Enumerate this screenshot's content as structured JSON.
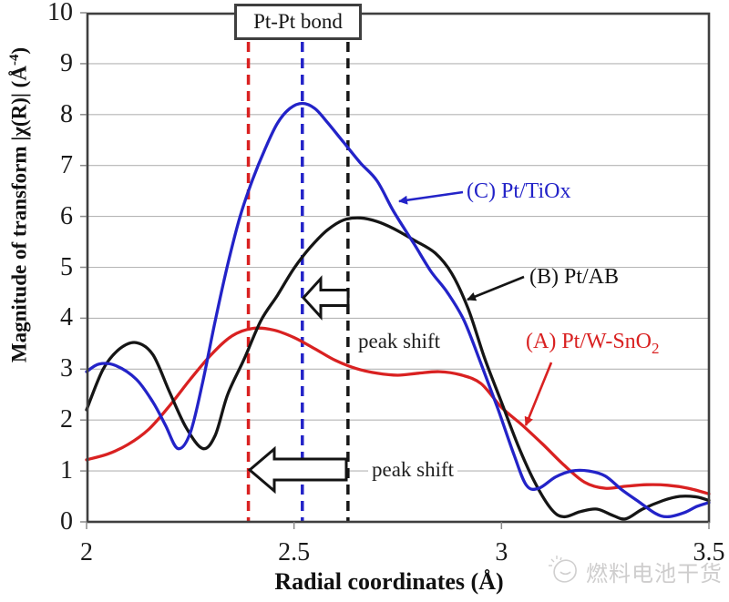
{
  "page": {
    "background": "#ffffff"
  },
  "watermark": {
    "text": "燃料电池干货",
    "icon": "sketch-doodle-icon",
    "color": "#c6c5c5"
  },
  "chart_data": {
    "type": "line",
    "title": "",
    "xlabel": "Radial coordinates (Å)",
    "ylabel": "Magnitude of transform |χ(R)| (Å⁻⁴)",
    "ylabel_parts": {
      "main": "Magnitude of transform |χ(R)| (Å",
      "sup": "-4",
      "close": ")"
    },
    "xlim": [
      2,
      3.5
    ],
    "ylim": [
      0,
      10
    ],
    "x_tick_values": [
      2,
      2.5,
      3,
      3.5
    ],
    "y_tick_values": [
      0,
      1,
      2,
      3,
      4,
      5,
      6,
      7,
      8,
      9,
      10
    ],
    "grid": "horizontal",
    "legend_position": "inline-annotations",
    "axis_color": "#3f3f3f",
    "grid_color": "#b5b5b5",
    "tick_color": "#8a8a8a",
    "series": [
      {
        "key": "A",
        "name": "(A) Pt/W-SnO2",
        "label_main": "(A) Pt/W-SnO",
        "label_sub": "2",
        "color": "#d92121",
        "points": [
          [
            2.0,
            1.22
          ],
          [
            2.05,
            1.33
          ],
          [
            2.1,
            1.52
          ],
          [
            2.15,
            1.82
          ],
          [
            2.2,
            2.28
          ],
          [
            2.25,
            2.8
          ],
          [
            2.3,
            3.28
          ],
          [
            2.35,
            3.65
          ],
          [
            2.4,
            3.8
          ],
          [
            2.45,
            3.77
          ],
          [
            2.5,
            3.62
          ],
          [
            2.55,
            3.4
          ],
          [
            2.6,
            3.17
          ],
          [
            2.65,
            3.01
          ],
          [
            2.7,
            2.92
          ],
          [
            2.75,
            2.88
          ],
          [
            2.8,
            2.92
          ],
          [
            2.85,
            2.95
          ],
          [
            2.9,
            2.89
          ],
          [
            2.95,
            2.72
          ],
          [
            3.0,
            2.25
          ],
          [
            3.05,
            1.9
          ],
          [
            3.1,
            1.52
          ],
          [
            3.15,
            1.12
          ],
          [
            3.2,
            0.78
          ],
          [
            3.25,
            0.66
          ],
          [
            3.3,
            0.7
          ],
          [
            3.35,
            0.73
          ],
          [
            3.4,
            0.72
          ],
          [
            3.45,
            0.66
          ],
          [
            3.5,
            0.55
          ]
        ]
      },
      {
        "key": "B",
        "name": "(B) Pt/AB",
        "label_main": "(B) Pt/AB",
        "label_sub": "",
        "color": "#151515",
        "points": [
          [
            2.0,
            2.2
          ],
          [
            2.04,
            3.0
          ],
          [
            2.08,
            3.4
          ],
          [
            2.12,
            3.52
          ],
          [
            2.16,
            3.28
          ],
          [
            2.2,
            2.55
          ],
          [
            2.24,
            1.85
          ],
          [
            2.28,
            1.44
          ],
          [
            2.31,
            1.7
          ],
          [
            2.34,
            2.5
          ],
          [
            2.38,
            3.2
          ],
          [
            2.42,
            3.95
          ],
          [
            2.46,
            4.45
          ],
          [
            2.5,
            4.98
          ],
          [
            2.54,
            5.4
          ],
          [
            2.58,
            5.73
          ],
          [
            2.62,
            5.93
          ],
          [
            2.66,
            5.97
          ],
          [
            2.7,
            5.9
          ],
          [
            2.74,
            5.76
          ],
          [
            2.79,
            5.53
          ],
          [
            2.84,
            5.28
          ],
          [
            2.88,
            4.88
          ],
          [
            2.92,
            4.18
          ],
          [
            2.96,
            3.2
          ],
          [
            3.0,
            2.35
          ],
          [
            3.04,
            1.5
          ],
          [
            3.08,
            0.78
          ],
          [
            3.12,
            0.25
          ],
          [
            3.15,
            0.1
          ],
          [
            3.19,
            0.2
          ],
          [
            3.23,
            0.25
          ],
          [
            3.27,
            0.12
          ],
          [
            3.3,
            0.06
          ],
          [
            3.34,
            0.25
          ],
          [
            3.39,
            0.42
          ],
          [
            3.43,
            0.5
          ],
          [
            3.47,
            0.49
          ],
          [
            3.5,
            0.42
          ]
        ]
      },
      {
        "key": "C",
        "name": "(C) Pt/TiOx",
        "label_main": "(C) Pt/TiOx",
        "label_sub": "",
        "color": "#2323c8",
        "points": [
          [
            2.0,
            2.95
          ],
          [
            2.03,
            3.1
          ],
          [
            2.07,
            3.07
          ],
          [
            2.12,
            2.8
          ],
          [
            2.16,
            2.35
          ],
          [
            2.19,
            1.9
          ],
          [
            2.22,
            1.44
          ],
          [
            2.25,
            1.75
          ],
          [
            2.28,
            2.75
          ],
          [
            2.31,
            3.95
          ],
          [
            2.34,
            5.05
          ],
          [
            2.37,
            6.0
          ],
          [
            2.4,
            6.72
          ],
          [
            2.43,
            7.32
          ],
          [
            2.46,
            7.83
          ],
          [
            2.49,
            8.12
          ],
          [
            2.52,
            8.22
          ],
          [
            2.55,
            8.12
          ],
          [
            2.58,
            7.85
          ],
          [
            2.62,
            7.45
          ],
          [
            2.66,
            7.05
          ],
          [
            2.7,
            6.7
          ],
          [
            2.74,
            6.1
          ],
          [
            2.79,
            5.45
          ],
          [
            2.83,
            4.92
          ],
          [
            2.87,
            4.5
          ],
          [
            2.91,
            3.95
          ],
          [
            2.95,
            3.12
          ],
          [
            2.99,
            2.25
          ],
          [
            3.03,
            1.32
          ],
          [
            3.06,
            0.72
          ],
          [
            3.09,
            0.66
          ],
          [
            3.13,
            0.88
          ],
          [
            3.17,
            1.0
          ],
          [
            3.21,
            1.0
          ],
          [
            3.25,
            0.9
          ],
          [
            3.29,
            0.63
          ],
          [
            3.33,
            0.4
          ],
          [
            3.37,
            0.17
          ],
          [
            3.4,
            0.1
          ],
          [
            3.44,
            0.18
          ],
          [
            3.47,
            0.3
          ],
          [
            3.5,
            0.38
          ]
        ]
      }
    ],
    "reference_lines": [
      {
        "x": 2.39,
        "color": "#d92121",
        "style": "dashed"
      },
      {
        "x": 2.52,
        "color": "#2323c8",
        "style": "dashed"
      },
      {
        "x": 2.63,
        "color": "#151515",
        "style": "dashed"
      }
    ],
    "annotations": {
      "bond_box": "Pt-Pt bond",
      "peak_shift_upper": "peak shift",
      "peak_shift_lower": "peak shift"
    }
  }
}
